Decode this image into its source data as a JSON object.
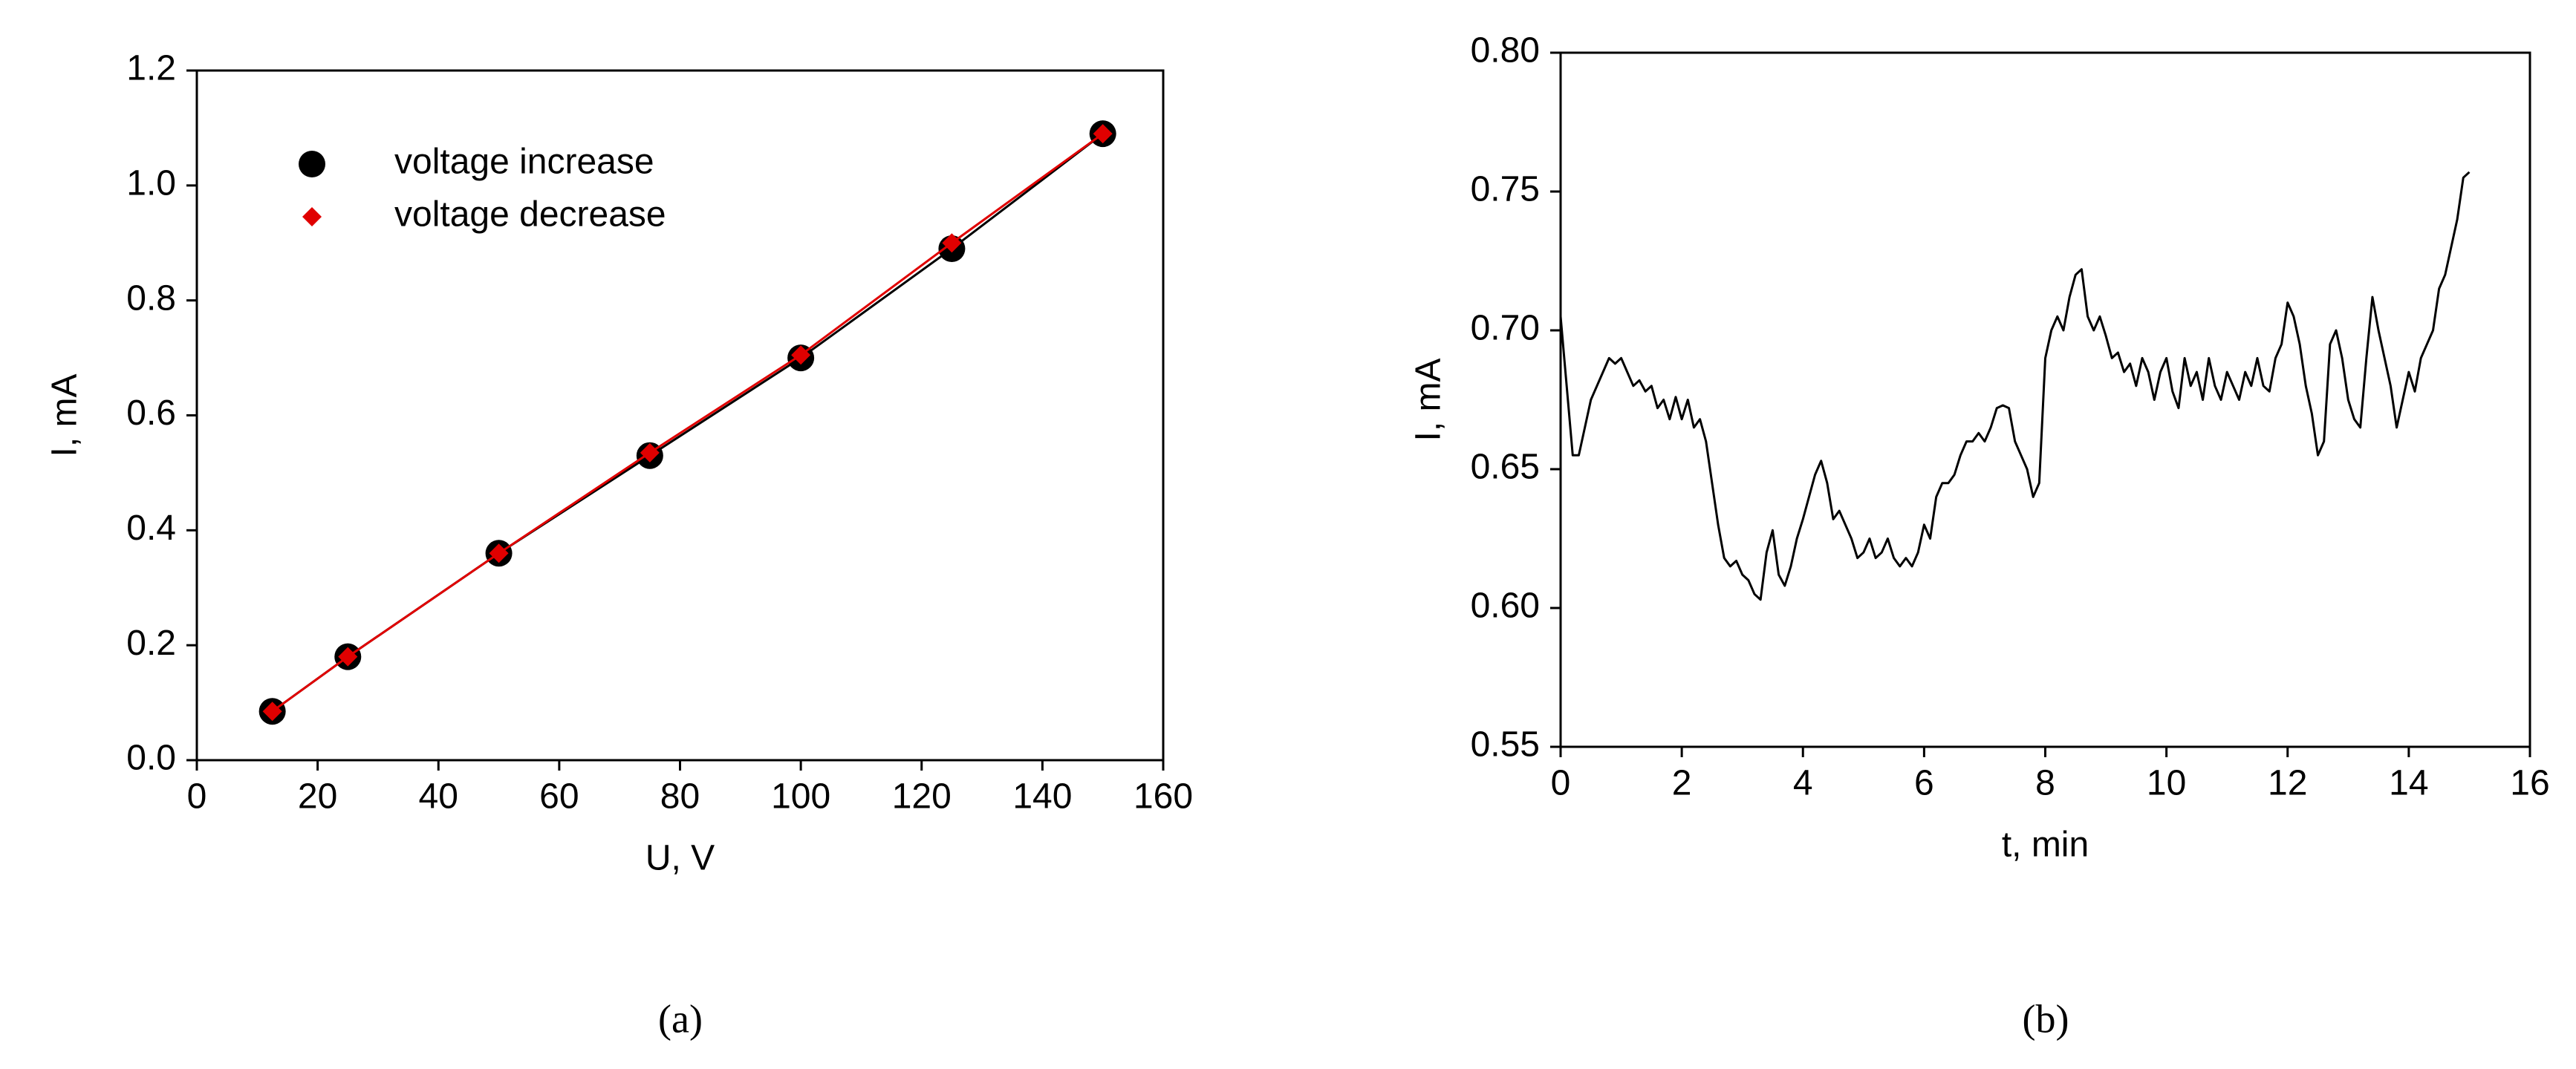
{
  "chart_data": [
    {
      "type": "line",
      "caption": "(a)",
      "x_label": "U, V",
      "y_label": "I, mA",
      "legend": "upper left",
      "xlim": [
        0,
        160
      ],
      "xticks": [
        0,
        20,
        40,
        60,
        80,
        100,
        120,
        140,
        160
      ],
      "ylim": [
        0,
        1.2
      ],
      "yticks": [
        {
          "value": 0,
          "label": "0.0"
        },
        0.2,
        0.4,
        0.6,
        0.8,
        {
          "value": 1,
          "label": "1.0"
        },
        1.2
      ],
      "x": [
        12.5,
        25,
        50,
        75,
        100,
        125,
        150
      ],
      "series": [
        {
          "name": "voltage increase",
          "color": "#000000",
          "marker": "circle",
          "values": [
            0.085,
            0.18,
            0.36,
            0.53,
            0.7,
            0.89,
            1.09
          ]
        },
        {
          "name": "voltage decrease",
          "color": "#e00000",
          "marker": "diamond",
          "values": [
            0.085,
            0.18,
            0.36,
            0.535,
            0.705,
            0.9,
            1.09
          ]
        }
      ]
    },
    {
      "type": "line",
      "caption": "(b)",
      "x_label": "t, min",
      "y_label": "I, mA",
      "xlim": [
        0,
        16
      ],
      "xticks": [
        0,
        2,
        4,
        6,
        8,
        10,
        12,
        14,
        16
      ],
      "ylim": [
        0.55,
        0.8
      ],
      "yticks": [
        0.55,
        {
          "value": 0.6,
          "label": "0.60"
        },
        0.65,
        {
          "value": 0.7,
          "label": "0.70"
        },
        0.75,
        {
          "value": 0.8,
          "label": "0.80"
        }
      ],
      "x": [
        0,
        0.1,
        0.2,
        0.3,
        0.4,
        0.5,
        0.6,
        0.7,
        0.8,
        0.9,
        1,
        1.1,
        1.2,
        1.3,
        1.4,
        1.5,
        1.6,
        1.7,
        1.8,
        1.9,
        2,
        2.1,
        2.2,
        2.3,
        2.4,
        2.5,
        2.6,
        2.7,
        2.8,
        2.9,
        3,
        3.1,
        3.2,
        3.3,
        3.4,
        3.5,
        3.6,
        3.7,
        3.8,
        3.9,
        4,
        4.1,
        4.2,
        4.3,
        4.4,
        4.5,
        4.6,
        4.7,
        4.8,
        4.9,
        5,
        5.1,
        5.2,
        5.3,
        5.4,
        5.5,
        5.6,
        5.7,
        5.8,
        5.9,
        6,
        6.1,
        6.2,
        6.3,
        6.4,
        6.5,
        6.6,
        6.7,
        6.8,
        6.9,
        7,
        7.1,
        7.2,
        7.3,
        7.4,
        7.5,
        7.6,
        7.7,
        7.8,
        7.9,
        8,
        8.1,
        8.2,
        8.3,
        8.4,
        8.5,
        8.6,
        8.7,
        8.8,
        8.9,
        9,
        9.1,
        9.2,
        9.3,
        9.4,
        9.5,
        9.6,
        9.7,
        9.8,
        9.9,
        10,
        10.1,
        10.2,
        10.3,
        10.4,
        10.5,
        10.6,
        10.7,
        10.8,
        10.9,
        11,
        11.1,
        11.2,
        11.3,
        11.4,
        11.5,
        11.6,
        11.7,
        11.8,
        11.9,
        12,
        12.1,
        12.2,
        12.3,
        12.4,
        12.5,
        12.6,
        12.7,
        12.8,
        12.9,
        13,
        13.1,
        13.2,
        13.3,
        13.4,
        13.5,
        13.6,
        13.7,
        13.8,
        13.9,
        14,
        14.1,
        14.2,
        14.3,
        14.4,
        14.5,
        14.6,
        14.7,
        14.8,
        14.9,
        15
      ],
      "series": [
        {
          "color": "#000000",
          "values": [
            0.705,
            0.68,
            0.655,
            0.655,
            0.665,
            0.675,
            0.68,
            0.685,
            0.69,
            0.688,
            0.69,
            0.685,
            0.68,
            0.682,
            0.678,
            0.68,
            0.672,
            0.675,
            0.668,
            0.676,
            0.668,
            0.675,
            0.665,
            0.668,
            0.66,
            0.645,
            0.63,
            0.618,
            0.615,
            0.617,
            0.612,
            0.61,
            0.605,
            0.603,
            0.62,
            0.628,
            0.612,
            0.608,
            0.615,
            0.625,
            0.632,
            0.64,
            0.648,
            0.653,
            0.645,
            0.632,
            0.635,
            0.63,
            0.625,
            0.618,
            0.62,
            0.625,
            0.618,
            0.62,
            0.625,
            0.618,
            0.615,
            0.618,
            0.615,
            0.62,
            0.63,
            0.625,
            0.64,
            0.645,
            0.645,
            0.648,
            0.655,
            0.66,
            0.66,
            0.663,
            0.66,
            0.665,
            0.672,
            0.673,
            0.672,
            0.66,
            0.655,
            0.65,
            0.64,
            0.645,
            0.69,
            0.7,
            0.705,
            0.7,
            0.712,
            0.72,
            0.722,
            0.705,
            0.7,
            0.705,
            0.698,
            0.69,
            0.692,
            0.685,
            0.688,
            0.68,
            0.69,
            0.685,
            0.675,
            0.685,
            0.69,
            0.678,
            0.672,
            0.69,
            0.68,
            0.685,
            0.675,
            0.69,
            0.68,
            0.675,
            0.685,
            0.68,
            0.675,
            0.685,
            0.68,
            0.69,
            0.68,
            0.678,
            0.69,
            0.695,
            0.71,
            0.705,
            0.695,
            0.68,
            0.67,
            0.655,
            0.66,
            0.695,
            0.7,
            0.69,
            0.675,
            0.668,
            0.665,
            0.69,
            0.712,
            0.7,
            0.69,
            0.68,
            0.665,
            0.675,
            0.685,
            0.678,
            0.69,
            0.695,
            0.7,
            0.715,
            0.72,
            0.73,
            0.74,
            0.755,
            0.757
          ]
        }
      ]
    }
  ]
}
